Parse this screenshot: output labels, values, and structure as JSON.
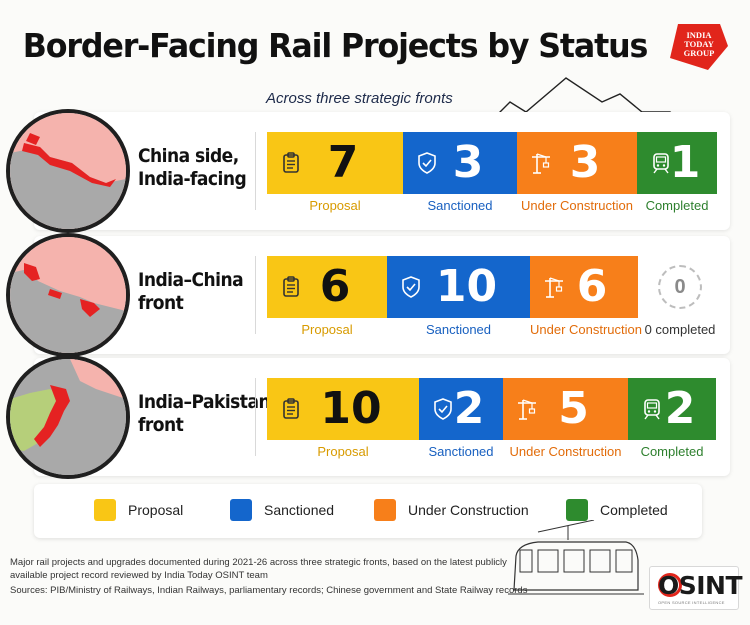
{
  "header": {
    "title": "Border-Facing Rail Projects by Status",
    "subtitle": "Across three strategic fronts",
    "logo_text": "INDIA TODAY GROUP"
  },
  "colors": {
    "proposal": "#f9c615",
    "sanctioned": "#1466cc",
    "under_construction": "#f77f1a",
    "completed": "#2e8b2e",
    "map_red": "#e52222",
    "map_pink": "#f5b3ad",
    "map_grey": "#a9a9a9"
  },
  "rows": [
    {
      "front_line1": "China side,",
      "front_line2": "India-facing",
      "proposal": {
        "value": "7",
        "label": "Proposal"
      },
      "sanctioned": {
        "value": "3",
        "label": "Sanctioned"
      },
      "under_construction": {
        "value": "3",
        "label": "Under Construction"
      },
      "completed": {
        "value": "1",
        "label": "Completed"
      }
    },
    {
      "front_line1": "India–China",
      "front_line2": "front",
      "proposal": {
        "value": "6",
        "label": "Proposal"
      },
      "sanctioned": {
        "value": "10",
        "label": "Sanctioned"
      },
      "under_construction": {
        "value": "6",
        "label": "Under Construction"
      },
      "completed": {
        "value": "0",
        "label": "0 completed"
      }
    },
    {
      "front_line1": "India–Pakistan",
      "front_line2": "front",
      "proposal": {
        "value": "10",
        "label": "Proposal"
      },
      "sanctioned": {
        "value": "2",
        "label": "Sanctioned"
      },
      "under_construction": {
        "value": "5",
        "label": "Under Construction"
      },
      "completed": {
        "value": "2",
        "label": "Completed"
      }
    }
  ],
  "legend": {
    "proposal": "Proposal",
    "sanctioned": "Sanctioned",
    "under_construction": "Under Construction",
    "completed": "Completed"
  },
  "footer": {
    "line1": "Major rail projects and upgrades documented during 2021-26 across three strategic fronts, based on the latest publicly",
    "line2": "available project record reviewed by India Today OSINT team",
    "sources": "Sources: PIB/Ministry of Railways, Indian Railways, parliamentary records; Chinese government and State Railway records"
  },
  "osint": {
    "brand": "OSINT",
    "tagline": "OPEN SOURCE INTELLIGENCE"
  },
  "chart_data": {
    "type": "bar",
    "title": "Border-Facing Rail Projects by Status",
    "subtitle": "Across three strategic fronts",
    "categories": [
      "China side, India-facing",
      "India–China front",
      "India–Pakistan front"
    ],
    "series": [
      {
        "name": "Proposal",
        "values": [
          7,
          6,
          10
        ]
      },
      {
        "name": "Sanctioned",
        "values": [
          3,
          10,
          2
        ]
      },
      {
        "name": "Under Construction",
        "values": [
          3,
          6,
          5
        ]
      },
      {
        "name": "Completed",
        "values": [
          1,
          0,
          2
        ]
      }
    ],
    "stacked": true,
    "orientation": "horizontal",
    "legend_position": "bottom",
    "grid": false
  }
}
